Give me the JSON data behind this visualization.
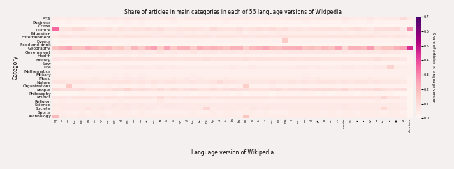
{
  "title": "Share of articles in main categories in each of 55 language versions of Wikipedia",
  "xlabel": "Language version of Wikipedia",
  "ylabel": "Category",
  "colorbar_label": "Share of articles in language version",
  "categories": [
    "Arts",
    "Business",
    "Crime",
    "Culture",
    "Education",
    "Entertainment",
    "Events",
    "Food and drink",
    "Geography",
    "Government",
    "Health",
    "History",
    "Law",
    "Life",
    "Mathematics",
    "Military",
    "Music",
    "Nature",
    "Organizations",
    "People",
    "Philosophy",
    "Politics",
    "Religion",
    "Science",
    "Society",
    "Sports",
    "Technology"
  ],
  "languages": [
    "sq",
    "ar",
    "az",
    "be",
    "bg",
    "ca",
    "cs",
    "cy",
    "da",
    "de",
    "el",
    "en",
    "eo",
    "es",
    "et",
    "eu",
    "fa",
    "fi",
    "fr",
    "ga",
    "gl",
    "he",
    "hr",
    "hu",
    "hy",
    "id",
    "it",
    "ja",
    "ka",
    "ko",
    "la",
    "lt",
    "lv",
    "mk",
    "ml",
    "ms",
    "nl",
    "nn",
    "no",
    "pl",
    "pt",
    "ro",
    "ru",
    "sh",
    "simple",
    "sk",
    "sl",
    "sr",
    "sv",
    "ta",
    "th",
    "tr",
    "uk",
    "vi",
    "zh-min-n"
  ],
  "data": [
    [
      0.05,
      0.04,
      0.05,
      0.04,
      0.05,
      0.05,
      0.05,
      0.04,
      0.06,
      0.06,
      0.05,
      0.06,
      0.06,
      0.06,
      0.05,
      0.04,
      0.04,
      0.05,
      0.06,
      0.03,
      0.05,
      0.05,
      0.05,
      0.05,
      0.04,
      0.04,
      0.05,
      0.05,
      0.04,
      0.05,
      0.04,
      0.04,
      0.05,
      0.04,
      0.04,
      0.05,
      0.05,
      0.05,
      0.06,
      0.05,
      0.06,
      0.05,
      0.05,
      0.04,
      0.06,
      0.05,
      0.04,
      0.04,
      0.06,
      0.04,
      0.05,
      0.05,
      0.05,
      0.1,
      0.05
    ],
    [
      0.02,
      0.02,
      0.03,
      0.02,
      0.02,
      0.02,
      0.02,
      0.02,
      0.02,
      0.03,
      0.02,
      0.03,
      0.02,
      0.03,
      0.02,
      0.02,
      0.02,
      0.02,
      0.03,
      0.02,
      0.02,
      0.02,
      0.02,
      0.02,
      0.02,
      0.02,
      0.03,
      0.02,
      0.02,
      0.02,
      0.02,
      0.02,
      0.02,
      0.02,
      0.02,
      0.02,
      0.02,
      0.02,
      0.03,
      0.02,
      0.02,
      0.02,
      0.02,
      0.02,
      0.03,
      0.02,
      0.02,
      0.02,
      0.03,
      0.02,
      0.02,
      0.02,
      0.02,
      0.02,
      0.02
    ],
    [
      0.01,
      0.01,
      0.01,
      0.01,
      0.01,
      0.01,
      0.01,
      0.01,
      0.01,
      0.01,
      0.01,
      0.02,
      0.01,
      0.02,
      0.01,
      0.01,
      0.01,
      0.01,
      0.01,
      0.01,
      0.01,
      0.01,
      0.01,
      0.01,
      0.01,
      0.01,
      0.01,
      0.01,
      0.01,
      0.01,
      0.01,
      0.01,
      0.01,
      0.01,
      0.01,
      0.01,
      0.01,
      0.01,
      0.01,
      0.01,
      0.01,
      0.01,
      0.01,
      0.01,
      0.01,
      0.01,
      0.01,
      0.01,
      0.01,
      0.01,
      0.01,
      0.01,
      0.01,
      0.01,
      0.01
    ],
    [
      0.35,
      0.07,
      0.08,
      0.1,
      0.1,
      0.07,
      0.06,
      0.06,
      0.08,
      0.05,
      0.08,
      0.06,
      0.08,
      0.07,
      0.09,
      0.07,
      0.09,
      0.06,
      0.06,
      0.07,
      0.08,
      0.08,
      0.07,
      0.06,
      0.1,
      0.08,
      0.07,
      0.07,
      0.09,
      0.06,
      0.08,
      0.09,
      0.08,
      0.1,
      0.08,
      0.09,
      0.06,
      0.07,
      0.06,
      0.07,
      0.07,
      0.08,
      0.08,
      0.08,
      0.06,
      0.08,
      0.09,
      0.08,
      0.06,
      0.09,
      0.09,
      0.09,
      0.1,
      0.05,
      0.28
    ],
    [
      0.03,
      0.04,
      0.03,
      0.04,
      0.04,
      0.04,
      0.04,
      0.04,
      0.04,
      0.04,
      0.04,
      0.04,
      0.04,
      0.04,
      0.04,
      0.05,
      0.05,
      0.04,
      0.04,
      0.05,
      0.04,
      0.04,
      0.03,
      0.04,
      0.04,
      0.04,
      0.04,
      0.04,
      0.05,
      0.03,
      0.04,
      0.04,
      0.03,
      0.04,
      0.05,
      0.04,
      0.04,
      0.04,
      0.04,
      0.04,
      0.04,
      0.04,
      0.03,
      0.04,
      0.04,
      0.03,
      0.04,
      0.04,
      0.04,
      0.05,
      0.04,
      0.04,
      0.04,
      0.04,
      0.03
    ],
    [
      0.05,
      0.07,
      0.07,
      0.06,
      0.07,
      0.07,
      0.07,
      0.07,
      0.07,
      0.08,
      0.06,
      0.08,
      0.07,
      0.07,
      0.07,
      0.06,
      0.06,
      0.07,
      0.07,
      0.06,
      0.07,
      0.07,
      0.07,
      0.07,
      0.06,
      0.07,
      0.07,
      0.07,
      0.06,
      0.07,
      0.06,
      0.07,
      0.07,
      0.06,
      0.07,
      0.07,
      0.07,
      0.07,
      0.07,
      0.07,
      0.07,
      0.07,
      0.07,
      0.07,
      0.08,
      0.07,
      0.07,
      0.07,
      0.08,
      0.06,
      0.07,
      0.06,
      0.07,
      0.06,
      0.05
    ],
    [
      0.01,
      0.02,
      0.02,
      0.02,
      0.02,
      0.02,
      0.02,
      0.02,
      0.02,
      0.02,
      0.02,
      0.02,
      0.02,
      0.02,
      0.02,
      0.02,
      0.02,
      0.02,
      0.02,
      0.02,
      0.02,
      0.02,
      0.02,
      0.02,
      0.02,
      0.02,
      0.02,
      0.02,
      0.02,
      0.02,
      0.02,
      0.02,
      0.02,
      0.02,
      0.02,
      0.15,
      0.02,
      0.02,
      0.02,
      0.02,
      0.02,
      0.02,
      0.02,
      0.02,
      0.02,
      0.02,
      0.02,
      0.02,
      0.02,
      0.02,
      0.02,
      0.02,
      0.02,
      0.02,
      0.02
    ],
    [
      0.01,
      0.01,
      0.01,
      0.01,
      0.01,
      0.01,
      0.01,
      0.01,
      0.01,
      0.01,
      0.01,
      0.02,
      0.01,
      0.01,
      0.01,
      0.01,
      0.01,
      0.01,
      0.01,
      0.01,
      0.01,
      0.01,
      0.01,
      0.01,
      0.01,
      0.01,
      0.01,
      0.01,
      0.01,
      0.01,
      0.01,
      0.01,
      0.01,
      0.01,
      0.01,
      0.01,
      0.01,
      0.01,
      0.01,
      0.01,
      0.01,
      0.01,
      0.01,
      0.01,
      0.01,
      0.01,
      0.01,
      0.01,
      0.01,
      0.01,
      0.01,
      0.01,
      0.01,
      0.01,
      0.01
    ],
    [
      0.18,
      0.22,
      0.25,
      0.18,
      0.18,
      0.23,
      0.2,
      0.18,
      0.2,
      0.15,
      0.17,
      0.12,
      0.21,
      0.15,
      0.22,
      0.26,
      0.14,
      0.25,
      0.16,
      0.22,
      0.22,
      0.15,
      0.23,
      0.2,
      0.22,
      0.2,
      0.18,
      0.22,
      0.22,
      0.14,
      0.2,
      0.22,
      0.25,
      0.2,
      0.19,
      0.22,
      0.22,
      0.23,
      0.18,
      0.19,
      0.17,
      0.2,
      0.18,
      0.25,
      0.12,
      0.22,
      0.22,
      0.2,
      0.27,
      0.14,
      0.18,
      0.18,
      0.22,
      0.25,
      0.45
    ],
    [
      0.05,
      0.06,
      0.06,
      0.06,
      0.05,
      0.05,
      0.06,
      0.07,
      0.06,
      0.06,
      0.06,
      0.06,
      0.05,
      0.06,
      0.05,
      0.05,
      0.07,
      0.05,
      0.06,
      0.05,
      0.05,
      0.07,
      0.05,
      0.06,
      0.06,
      0.05,
      0.06,
      0.06,
      0.05,
      0.06,
      0.05,
      0.05,
      0.05,
      0.05,
      0.06,
      0.05,
      0.06,
      0.06,
      0.06,
      0.06,
      0.06,
      0.06,
      0.06,
      0.05,
      0.06,
      0.05,
      0.06,
      0.06,
      0.06,
      0.06,
      0.07,
      0.06,
      0.06,
      0.04,
      0.03
    ],
    [
      0.02,
      0.02,
      0.02,
      0.02,
      0.02,
      0.02,
      0.02,
      0.03,
      0.02,
      0.02,
      0.02,
      0.03,
      0.02,
      0.03,
      0.02,
      0.02,
      0.02,
      0.02,
      0.03,
      0.02,
      0.02,
      0.02,
      0.02,
      0.02,
      0.02,
      0.02,
      0.02,
      0.02,
      0.02,
      0.02,
      0.02,
      0.02,
      0.02,
      0.02,
      0.02,
      0.02,
      0.02,
      0.02,
      0.02,
      0.02,
      0.02,
      0.02,
      0.02,
      0.02,
      0.02,
      0.02,
      0.02,
      0.02,
      0.02,
      0.02,
      0.02,
      0.02,
      0.02,
      0.02,
      0.02
    ],
    [
      0.07,
      0.06,
      0.07,
      0.08,
      0.08,
      0.07,
      0.08,
      0.07,
      0.08,
      0.08,
      0.08,
      0.08,
      0.07,
      0.08,
      0.08,
      0.08,
      0.07,
      0.08,
      0.08,
      0.07,
      0.08,
      0.08,
      0.08,
      0.09,
      0.07,
      0.08,
      0.08,
      0.08,
      0.08,
      0.09,
      0.07,
      0.08,
      0.08,
      0.07,
      0.08,
      0.07,
      0.08,
      0.07,
      0.08,
      0.08,
      0.08,
      0.07,
      0.07,
      0.07,
      0.08,
      0.07,
      0.08,
      0.07,
      0.07,
      0.09,
      0.07,
      0.07,
      0.07,
      0.06,
      0.02
    ],
    [
      0.02,
      0.02,
      0.02,
      0.02,
      0.02,
      0.02,
      0.02,
      0.02,
      0.02,
      0.02,
      0.02,
      0.02,
      0.02,
      0.02,
      0.02,
      0.02,
      0.02,
      0.02,
      0.02,
      0.02,
      0.02,
      0.02,
      0.02,
      0.02,
      0.02,
      0.02,
      0.02,
      0.02,
      0.02,
      0.02,
      0.02,
      0.02,
      0.02,
      0.02,
      0.02,
      0.02,
      0.02,
      0.02,
      0.02,
      0.02,
      0.02,
      0.02,
      0.02,
      0.02,
      0.02,
      0.02,
      0.02,
      0.02,
      0.02,
      0.02,
      0.02,
      0.02,
      0.02,
      0.02,
      0.02
    ],
    [
      0.04,
      0.04,
      0.04,
      0.04,
      0.04,
      0.05,
      0.04,
      0.04,
      0.04,
      0.04,
      0.04,
      0.05,
      0.05,
      0.05,
      0.04,
      0.04,
      0.05,
      0.04,
      0.05,
      0.04,
      0.04,
      0.04,
      0.04,
      0.04,
      0.04,
      0.04,
      0.04,
      0.05,
      0.04,
      0.04,
      0.05,
      0.04,
      0.04,
      0.04,
      0.04,
      0.04,
      0.04,
      0.05,
      0.05,
      0.04,
      0.05,
      0.04,
      0.04,
      0.04,
      0.05,
      0.05,
      0.04,
      0.05,
      0.04,
      0.05,
      0.05,
      0.13,
      0.04,
      0.04,
      0.03
    ],
    [
      0.03,
      0.03,
      0.03,
      0.03,
      0.03,
      0.03,
      0.03,
      0.03,
      0.03,
      0.03,
      0.03,
      0.03,
      0.03,
      0.03,
      0.03,
      0.03,
      0.03,
      0.03,
      0.03,
      0.03,
      0.03,
      0.03,
      0.03,
      0.03,
      0.03,
      0.03,
      0.03,
      0.03,
      0.03,
      0.03,
      0.03,
      0.03,
      0.03,
      0.03,
      0.03,
      0.03,
      0.03,
      0.03,
      0.03,
      0.03,
      0.03,
      0.03,
      0.03,
      0.03,
      0.03,
      0.03,
      0.03,
      0.03,
      0.03,
      0.03,
      0.03,
      0.03,
      0.03,
      0.03,
      0.03
    ],
    [
      0.03,
      0.03,
      0.03,
      0.03,
      0.03,
      0.03,
      0.03,
      0.03,
      0.03,
      0.04,
      0.03,
      0.04,
      0.03,
      0.04,
      0.03,
      0.03,
      0.03,
      0.03,
      0.03,
      0.03,
      0.03,
      0.04,
      0.03,
      0.03,
      0.03,
      0.03,
      0.03,
      0.03,
      0.03,
      0.03,
      0.03,
      0.03,
      0.03,
      0.03,
      0.03,
      0.03,
      0.03,
      0.03,
      0.04,
      0.03,
      0.03,
      0.03,
      0.03,
      0.03,
      0.03,
      0.03,
      0.03,
      0.03,
      0.03,
      0.03,
      0.03,
      0.03,
      0.03,
      0.03,
      0.03
    ],
    [
      0.04,
      0.04,
      0.04,
      0.04,
      0.04,
      0.04,
      0.05,
      0.04,
      0.04,
      0.05,
      0.04,
      0.05,
      0.05,
      0.05,
      0.04,
      0.04,
      0.04,
      0.04,
      0.05,
      0.04,
      0.05,
      0.04,
      0.05,
      0.04,
      0.04,
      0.04,
      0.05,
      0.04,
      0.04,
      0.04,
      0.04,
      0.04,
      0.04,
      0.04,
      0.04,
      0.04,
      0.04,
      0.04,
      0.05,
      0.04,
      0.05,
      0.04,
      0.04,
      0.04,
      0.04,
      0.04,
      0.04,
      0.04,
      0.05,
      0.04,
      0.04,
      0.04,
      0.04,
      0.04,
      0.02
    ],
    [
      0.07,
      0.07,
      0.06,
      0.07,
      0.07,
      0.06,
      0.06,
      0.06,
      0.07,
      0.07,
      0.07,
      0.08,
      0.06,
      0.07,
      0.06,
      0.08,
      0.06,
      0.07,
      0.07,
      0.06,
      0.06,
      0.07,
      0.06,
      0.06,
      0.07,
      0.1,
      0.07,
      0.07,
      0.06,
      0.06,
      0.06,
      0.06,
      0.06,
      0.07,
      0.06,
      0.06,
      0.07,
      0.06,
      0.07,
      0.06,
      0.07,
      0.07,
      0.07,
      0.06,
      0.07,
      0.06,
      0.07,
      0.07,
      0.06,
      0.07,
      0.06,
      0.06,
      0.06,
      0.05,
      0.02
    ],
    [
      0.02,
      0.02,
      0.16,
      0.03,
      0.03,
      0.03,
      0.02,
      0.02,
      0.03,
      0.02,
      0.03,
      0.02,
      0.02,
      0.03,
      0.02,
      0.03,
      0.02,
      0.02,
      0.02,
      0.02,
      0.02,
      0.02,
      0.02,
      0.02,
      0.03,
      0.02,
      0.03,
      0.02,
      0.03,
      0.14,
      0.02,
      0.02,
      0.02,
      0.03,
      0.02,
      0.02,
      0.02,
      0.02,
      0.02,
      0.02,
      0.02,
      0.02,
      0.02,
      0.02,
      0.02,
      0.02,
      0.02,
      0.02,
      0.02,
      0.02,
      0.02,
      0.02,
      0.02,
      0.02,
      0.02
    ],
    [
      0.1,
      0.09,
      0.09,
      0.09,
      0.1,
      0.08,
      0.08,
      0.08,
      0.08,
      0.1,
      0.1,
      0.13,
      0.09,
      0.1,
      0.09,
      0.08,
      0.1,
      0.07,
      0.1,
      0.08,
      0.09,
      0.1,
      0.08,
      0.08,
      0.1,
      0.08,
      0.09,
      0.1,
      0.09,
      0.09,
      0.08,
      0.08,
      0.08,
      0.09,
      0.1,
      0.08,
      0.09,
      0.09,
      0.1,
      0.09,
      0.1,
      0.1,
      0.1,
      0.09,
      0.12,
      0.08,
      0.09,
      0.09,
      0.09,
      0.11,
      0.09,
      0.08,
      0.09,
      0.09,
      0.01
    ],
    [
      0.01,
      0.01,
      0.01,
      0.01,
      0.02,
      0.02,
      0.02,
      0.02,
      0.02,
      0.02,
      0.01,
      0.02,
      0.02,
      0.02,
      0.02,
      0.02,
      0.02,
      0.02,
      0.02,
      0.02,
      0.02,
      0.01,
      0.02,
      0.02,
      0.02,
      0.02,
      0.02,
      0.01,
      0.02,
      0.01,
      0.02,
      0.02,
      0.02,
      0.01,
      0.02,
      0.02,
      0.02,
      0.02,
      0.02,
      0.02,
      0.01,
      0.02,
      0.01,
      0.02,
      0.02,
      0.02,
      0.01,
      0.02,
      0.02,
      0.02,
      0.02,
      0.02,
      0.01,
      0.01,
      0.01
    ],
    [
      0.06,
      0.07,
      0.06,
      0.07,
      0.07,
      0.08,
      0.07,
      0.06,
      0.08,
      0.07,
      0.06,
      0.07,
      0.07,
      0.07,
      0.07,
      0.06,
      0.1,
      0.06,
      0.08,
      0.06,
      0.07,
      0.07,
      0.08,
      0.08,
      0.06,
      0.07,
      0.07,
      0.07,
      0.07,
      0.07,
      0.07,
      0.07,
      0.07,
      0.06,
      0.07,
      0.07,
      0.07,
      0.07,
      0.07,
      0.07,
      0.07,
      0.07,
      0.07,
      0.07,
      0.07,
      0.07,
      0.07,
      0.07,
      0.08,
      0.07,
      0.12,
      0.07,
      0.07,
      0.05,
      0.01
    ],
    [
      0.03,
      0.04,
      0.03,
      0.03,
      0.03,
      0.03,
      0.03,
      0.03,
      0.03,
      0.03,
      0.04,
      0.03,
      0.03,
      0.03,
      0.03,
      0.03,
      0.05,
      0.03,
      0.03,
      0.03,
      0.03,
      0.03,
      0.03,
      0.03,
      0.03,
      0.03,
      0.03,
      0.03,
      0.03,
      0.03,
      0.03,
      0.03,
      0.03,
      0.03,
      0.03,
      0.03,
      0.03,
      0.03,
      0.03,
      0.03,
      0.03,
      0.03,
      0.03,
      0.03,
      0.03,
      0.03,
      0.03,
      0.03,
      0.03,
      0.04,
      0.03,
      0.03,
      0.03,
      0.03,
      0.01
    ],
    [
      0.05,
      0.05,
      0.05,
      0.05,
      0.05,
      0.05,
      0.05,
      0.05,
      0.05,
      0.06,
      0.05,
      0.06,
      0.05,
      0.06,
      0.05,
      0.05,
      0.05,
      0.06,
      0.06,
      0.05,
      0.05,
      0.05,
      0.05,
      0.05,
      0.05,
      0.05,
      0.05,
      0.05,
      0.05,
      0.05,
      0.05,
      0.05,
      0.05,
      0.05,
      0.05,
      0.05,
      0.05,
      0.05,
      0.05,
      0.05,
      0.05,
      0.05,
      0.05,
      0.05,
      0.06,
      0.05,
      0.05,
      0.05,
      0.05,
      0.05,
      0.05,
      0.05,
      0.05,
      0.04,
      0.01
    ],
    [
      0.04,
      0.05,
      0.05,
      0.05,
      0.05,
      0.07,
      0.05,
      0.06,
      0.05,
      0.05,
      0.05,
      0.06,
      0.05,
      0.05,
      0.06,
      0.05,
      0.04,
      0.05,
      0.05,
      0.05,
      0.05,
      0.05,
      0.05,
      0.12,
      0.04,
      0.05,
      0.05,
      0.05,
      0.05,
      0.04,
      0.06,
      0.05,
      0.06,
      0.05,
      0.05,
      0.05,
      0.05,
      0.05,
      0.05,
      0.05,
      0.05,
      0.05,
      0.05,
      0.05,
      0.06,
      0.05,
      0.05,
      0.05,
      0.05,
      0.05,
      0.11,
      0.05,
      0.05,
      0.05,
      0.01
    ],
    [
      0.04,
      0.04,
      0.03,
      0.03,
      0.04,
      0.03,
      0.04,
      0.04,
      0.03,
      0.04,
      0.04,
      0.04,
      0.03,
      0.04,
      0.03,
      0.03,
      0.03,
      0.03,
      0.03,
      0.03,
      0.03,
      0.04,
      0.03,
      0.03,
      0.04,
      0.03,
      0.04,
      0.04,
      0.03,
      0.04,
      0.04,
      0.03,
      0.04,
      0.03,
      0.03,
      0.03,
      0.04,
      0.04,
      0.04,
      0.04,
      0.04,
      0.03,
      0.04,
      0.03,
      0.04,
      0.04,
      0.03,
      0.04,
      0.04,
      0.04,
      0.03,
      0.04,
      0.04,
      0.03,
      0.01
    ],
    [
      0.2,
      0.05,
      0.04,
      0.04,
      0.05,
      0.04,
      0.04,
      0.05,
      0.04,
      0.04,
      0.04,
      0.04,
      0.04,
      0.04,
      0.04,
      0.04,
      0.04,
      0.04,
      0.04,
      0.04,
      0.04,
      0.04,
      0.04,
      0.04,
      0.04,
      0.04,
      0.04,
      0.04,
      0.04,
      0.17,
      0.04,
      0.04,
      0.04,
      0.04,
      0.04,
      0.04,
      0.04,
      0.04,
      0.04,
      0.04,
      0.04,
      0.04,
      0.04,
      0.04,
      0.04,
      0.04,
      0.04,
      0.04,
      0.04,
      0.04,
      0.04,
      0.04,
      0.04,
      0.04,
      0.01
    ]
  ],
  "vmin": 0.0,
  "vmax": 0.7,
  "colormap": "RdPu",
  "colorbar_ticks": [
    0.0,
    0.1,
    0.2,
    0.3,
    0.4,
    0.5,
    0.6,
    0.7
  ],
  "colorbar_ticklabels": [
    "0.0",
    "0.1",
    "0.2",
    "0.3",
    "0.4",
    "0.5",
    "0.6",
    "0.7"
  ],
  "bg_color": "#f5f0f0"
}
